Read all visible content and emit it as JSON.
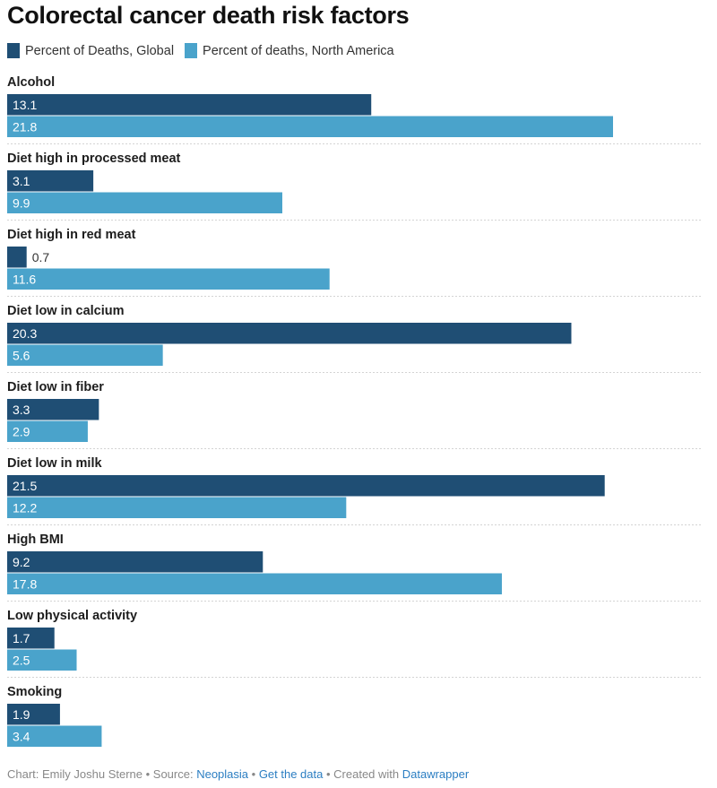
{
  "title": "Colorectal cancer death risk factors",
  "legend": [
    {
      "label": "Percent of Deaths, Global",
      "color": "#1f4e74"
    },
    {
      "label": "Percent of deaths, North America",
      "color": "#4aa3cb"
    }
  ],
  "chart_data": {
    "type": "bar",
    "orientation": "horizontal",
    "title": "Colorectal cancer death risk factors",
    "categories": [
      "Alcohol",
      "Diet high in processed meat",
      "Diet high in red meat",
      "Diet low in calcium",
      "Diet low in fiber",
      "Diet low in milk",
      "High BMI",
      "Low physical activity",
      "Smoking"
    ],
    "series": [
      {
        "name": "Percent of Deaths, Global",
        "color": "#1f4e74",
        "values": [
          13.1,
          3.1,
          0.7,
          20.3,
          3.3,
          21.5,
          9.2,
          1.7,
          1.9
        ]
      },
      {
        "name": "Percent of deaths, North America",
        "color": "#4aa3cb",
        "values": [
          21.8,
          9.9,
          11.6,
          5.6,
          2.9,
          12.2,
          17.8,
          2.5,
          3.4
        ]
      }
    ],
    "xlim": [
      0,
      21.8
    ],
    "legend_position": "top-left",
    "grid": false
  },
  "footer": {
    "prefix": "Chart: Emily Joshu Sterne • Source: ",
    "source": "Neoplasia",
    "sep1": " • ",
    "data_link": "Get the data",
    "sep2": " • Created with ",
    "tool": "Datawrapper"
  }
}
